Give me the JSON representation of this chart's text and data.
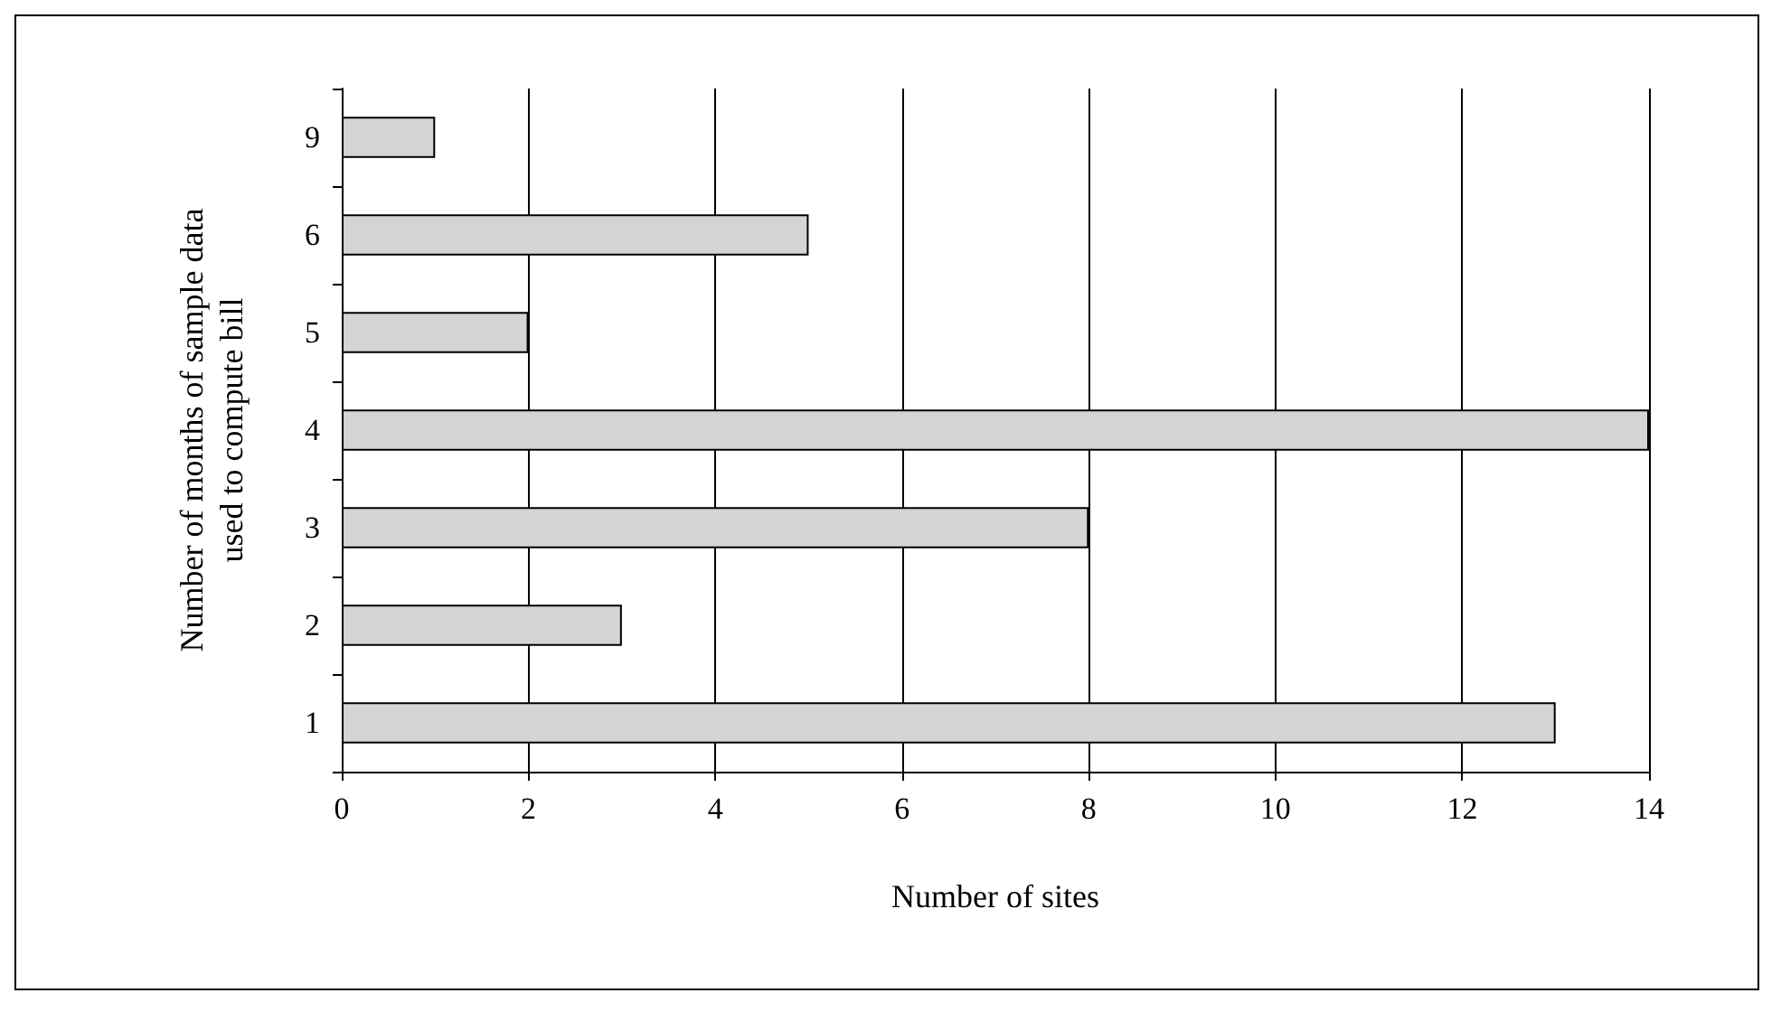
{
  "chart_data": {
    "type": "bar",
    "orientation": "horizontal",
    "xlabel": "Number of sites",
    "ylabel": "Number of months of sample data used to compute bill",
    "categories": [
      "9",
      "6",
      "5",
      "4",
      "3",
      "2",
      "1"
    ],
    "values": [
      1,
      5,
      2,
      14,
      8,
      3,
      13
    ],
    "color": "#d4d4d4",
    "xlim": [
      0,
      14
    ],
    "xticks": [
      0,
      2,
      4,
      6,
      8,
      10,
      12,
      14
    ],
    "grid": "x"
  }
}
